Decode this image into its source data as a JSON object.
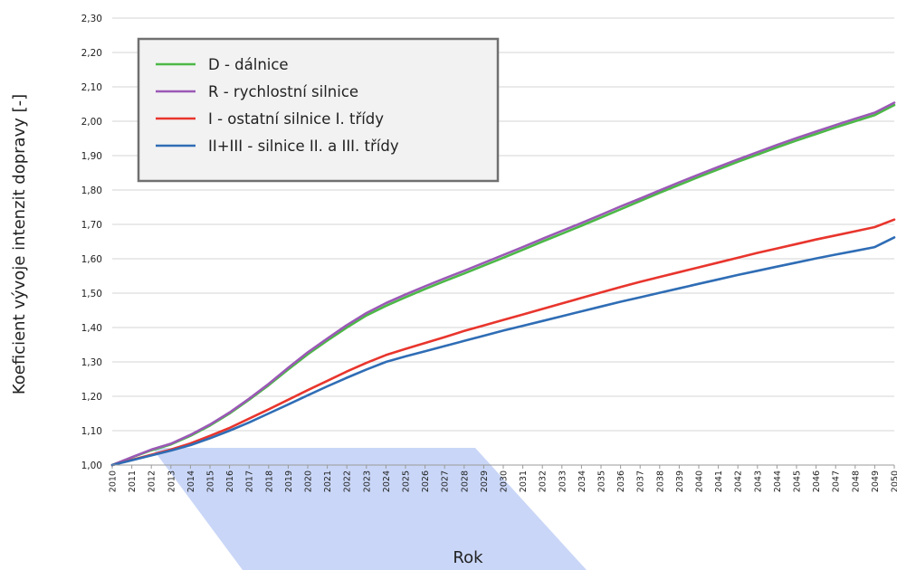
{
  "chart_data": {
    "type": "line",
    "title": "",
    "xlabel": "Rok",
    "ylabel": "Koeficient vývoje intenzit dopravy [-]",
    "ylim": [
      1.0,
      2.3
    ],
    "y_ticks": [
      "1,00",
      "1,10",
      "1,20",
      "1,30",
      "1,40",
      "1,50",
      "1,60",
      "1,70",
      "1,80",
      "1,90",
      "2,00",
      "2,10",
      "2,20",
      "2,30"
    ],
    "grid": true,
    "legend_position": "top-left",
    "x": [
      2010,
      2011,
      2012,
      2013,
      2014,
      2015,
      2016,
      2017,
      2018,
      2019,
      2020,
      2021,
      2022,
      2023,
      2024,
      2025,
      2026,
      2027,
      2028,
      2029,
      2030,
      2031,
      2032,
      2033,
      2034,
      2035,
      2036,
      2037,
      2038,
      2039,
      2040,
      2041,
      2042,
      2043,
      2044,
      2045,
      2046,
      2047,
      2048,
      2049,
      2050
    ],
    "series": [
      {
        "name": "D - dálnice",
        "color": "#4cb847",
        "values": [
          1.0,
          1.022,
          1.043,
          1.06,
          1.085,
          1.115,
          1.15,
          1.19,
          1.232,
          1.278,
          1.322,
          1.362,
          1.4,
          1.435,
          1.463,
          1.488,
          1.512,
          1.535,
          1.557,
          1.58,
          1.603,
          1.626,
          1.65,
          1.673,
          1.696,
          1.72,
          1.744,
          1.768,
          1.792,
          1.815,
          1.838,
          1.86,
          1.882,
          1.903,
          1.924,
          1.944,
          1.963,
          1.982,
          2.0,
          2.018,
          2.047
        ]
      },
      {
        "name": "R - rychlostní silnice",
        "color": "#9b59b6",
        "values": [
          1.0,
          1.023,
          1.045,
          1.062,
          1.088,
          1.118,
          1.153,
          1.193,
          1.236,
          1.283,
          1.328,
          1.368,
          1.407,
          1.442,
          1.471,
          1.496,
          1.52,
          1.543,
          1.565,
          1.588,
          1.611,
          1.634,
          1.658,
          1.681,
          1.704,
          1.728,
          1.752,
          1.775,
          1.799,
          1.822,
          1.845,
          1.867,
          1.889,
          1.91,
          1.931,
          1.951,
          1.97,
          1.989,
          2.007,
          2.025,
          2.054
        ]
      },
      {
        "name": "I - ostatní silnice I. třídy",
        "color": "#e8352d",
        "values": [
          1.0,
          1.015,
          1.03,
          1.045,
          1.063,
          1.085,
          1.108,
          1.135,
          1.162,
          1.19,
          1.218,
          1.245,
          1.272,
          1.297,
          1.32,
          1.338,
          1.355,
          1.372,
          1.39,
          1.406,
          1.422,
          1.438,
          1.454,
          1.47,
          1.486,
          1.502,
          1.518,
          1.533,
          1.547,
          1.561,
          1.575,
          1.589,
          1.603,
          1.617,
          1.63,
          1.643,
          1.656,
          1.668,
          1.68,
          1.692,
          1.714
        ]
      },
      {
        "name": "II+III - silnice II. a III. třídy",
        "color": "#2f6db5",
        "values": [
          1.0,
          1.014,
          1.028,
          1.042,
          1.058,
          1.078,
          1.1,
          1.124,
          1.15,
          1.176,
          1.203,
          1.229,
          1.254,
          1.278,
          1.3,
          1.316,
          1.331,
          1.346,
          1.361,
          1.376,
          1.391,
          1.405,
          1.419,
          1.433,
          1.447,
          1.461,
          1.475,
          1.488,
          1.501,
          1.514,
          1.527,
          1.54,
          1.553,
          1.565,
          1.577,
          1.589,
          1.601,
          1.612,
          1.623,
          1.634,
          1.662
        ]
      }
    ]
  }
}
